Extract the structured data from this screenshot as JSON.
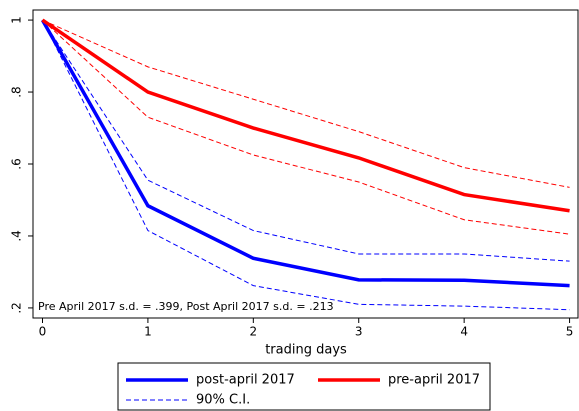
{
  "chart_data": {
    "type": "line",
    "x_label": "trading days",
    "annotation": "Pre April 2017 s.d. = .399,  Post April 2017 s.d. = .213",
    "x": [
      0,
      1,
      2,
      3,
      4,
      5
    ],
    "xlim": [
      -0.09,
      5.08
    ],
    "xticks": [
      0,
      1,
      2,
      3,
      4,
      5
    ],
    "ylim": [
      0.172,
      1.028
    ],
    "yticks": [
      {
        "value": 0.2,
        "label": ".2"
      },
      {
        "value": 0.4,
        "label": ".4"
      },
      {
        "value": 0.6,
        "label": ".6"
      },
      {
        "value": 0.8,
        "label": ".8"
      },
      1
    ],
    "ci_label": "90% C.I.",
    "series": [
      {
        "name": "post-april 2017",
        "color": "#0000ff",
        "values": [
          1,
          0.484,
          0.338,
          0.278,
          0.277,
          0.262
        ],
        "ci_upper": [
          1,
          0.555,
          0.415,
          0.35,
          0.35,
          0.33
        ],
        "ci_lower": [
          1,
          0.415,
          0.262,
          0.21,
          0.205,
          0.195
        ]
      },
      {
        "name": "pre-april 2017",
        "color": "#ff0000",
        "values": [
          1,
          0.8,
          0.7,
          0.617,
          0.515,
          0.47
        ],
        "ci_upper": [
          1,
          0.87,
          0.78,
          0.69,
          0.59,
          0.535
        ],
        "ci_lower": [
          1,
          0.73,
          0.625,
          0.55,
          0.445,
          0.405
        ]
      }
    ]
  }
}
